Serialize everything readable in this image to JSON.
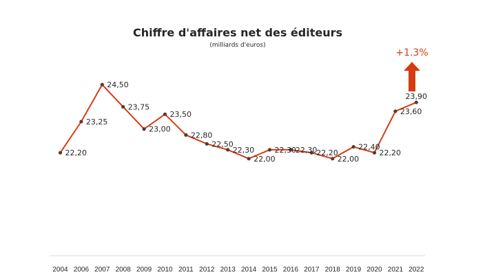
{
  "chart_data": {
    "type": "line",
    "title": "Chiffre d'affaires net des éditeurs",
    "subtitle": "(milliards d'euros)",
    "x": [
      "2004",
      "2006",
      "2007",
      "2008",
      "2009",
      "2010",
      "2011",
      "2012",
      "2013",
      "2014",
      "2015",
      "2016",
      "2017",
      "2018",
      "2019",
      "2020",
      "2021",
      "2022"
    ],
    "values": [
      22.2,
      23.25,
      24.5,
      23.75,
      23.0,
      23.5,
      22.8,
      22.5,
      22.3,
      22.0,
      22.3,
      22.3,
      22.2,
      22.0,
      22.4,
      22.2,
      23.6,
      23.9
    ],
    "labels": [
      "22,20",
      "23,25",
      "24,50",
      "23,75",
      "23,00",
      "23,50",
      "22,80",
      "22,50",
      "22,30",
      "22,00",
      "22,30",
      "22,30",
      "22,20",
      "22,00",
      "22,40",
      "22,20",
      "23,60",
      "23,90"
    ],
    "annotation": "+1.3%",
    "grid": false,
    "legend": "none",
    "colors": {
      "line": "#d43c12",
      "marker": "#5a3a2e",
      "arrow": "#d43c12",
      "text": "#262626",
      "axis": "#d9d9d9"
    }
  }
}
